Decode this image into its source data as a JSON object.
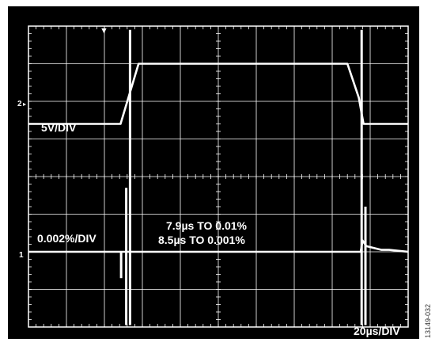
{
  "figure_id": "13149-032",
  "colors": {
    "background": "#000000",
    "grid": "#ffffff",
    "trace": "#ffffff"
  },
  "chart_data": {
    "type": "line",
    "title": "",
    "xlabel": "",
    "ylabel": "",
    "grid": true,
    "divisions": {
      "horizontal": 10,
      "vertical": 8
    },
    "xlim": [
      0,
      200
    ],
    "scale_labels": {
      "time_per_div": "20µs/DIV",
      "channel2_scale": "5V/DIV",
      "settling_scale": "0.002%/DIV"
    },
    "annotations": [
      "7.9µs TO 0.01%",
      "8.5µs TO 0.001%"
    ],
    "channel_markers": {
      "ch2": "2",
      "ch1": "1"
    },
    "series": [
      {
        "channel": "2",
        "units": "divisions",
        "x": [
          0,
          48.5,
          58,
          168,
          174,
          176.5,
          200
        ],
        "y": [
          5.4,
          5.4,
          7.0,
          7.0,
          6.1,
          5.4,
          5.4
        ]
      },
      {
        "channel": "1",
        "units": "divisions",
        "x": [
          0,
          48.5,
          51,
          54,
          56,
          168,
          175,
          176,
          178,
          182,
          186,
          190,
          200
        ],
        "y": [
          2.0,
          2.0,
          2.0,
          2.0,
          2.0,
          2.0,
          2.0,
          2.3,
          2.15,
          2.1,
          2.05,
          2.05,
          2.0
        ]
      }
    ]
  }
}
